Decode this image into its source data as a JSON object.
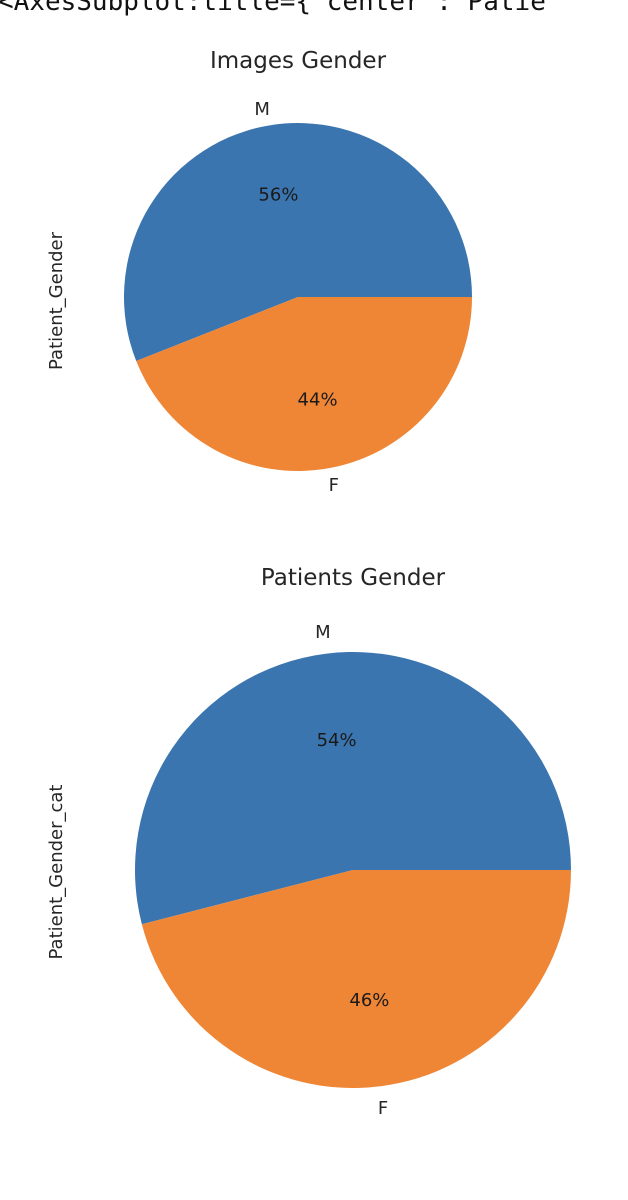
{
  "code_snippet": "<AxesSubplot:title={'center':'Patie",
  "chart_data": [
    {
      "type": "pie",
      "title": "Images Gender",
      "ylabel": "Patient_Gender",
      "categories": [
        "M",
        "F"
      ],
      "values": [
        56,
        44
      ],
      "value_labels": [
        "56%",
        "44%"
      ],
      "colors": [
        "#3a75af",
        "#ef8636"
      ]
    },
    {
      "type": "pie",
      "title": "Patients Gender",
      "ylabel": "Patient_Gender_cat",
      "categories": [
        "M",
        "F"
      ],
      "values": [
        54,
        46
      ],
      "value_labels": [
        "54%",
        "46%"
      ],
      "colors": [
        "#3a75af",
        "#ef8636"
      ]
    }
  ]
}
